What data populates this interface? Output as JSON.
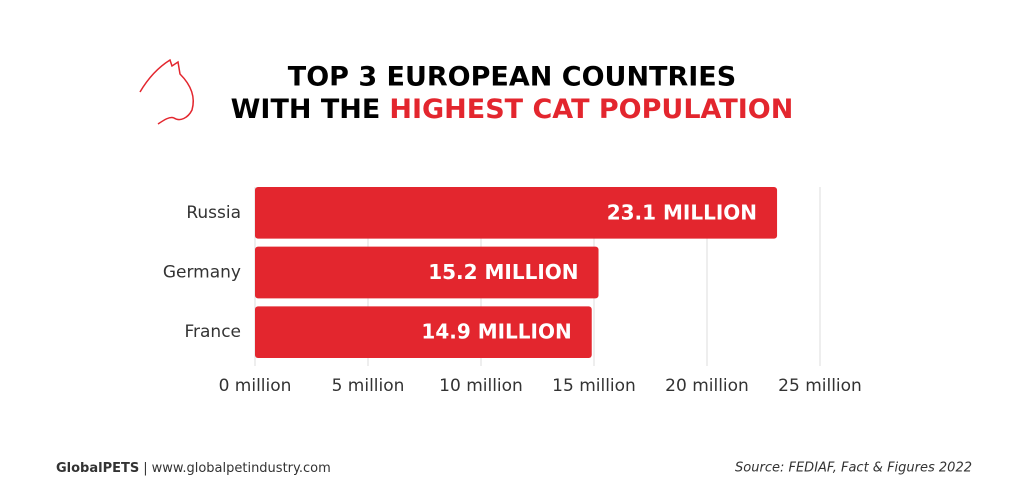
{
  "chart_data": {
    "type": "bar",
    "orientation": "horizontal",
    "title": {
      "line1": "TOP 3 EUROPEAN COUNTRIES",
      "line2": "WITH THE",
      "highlight": "HIGHEST CAT POPULATION"
    },
    "categories": [
      "Russia",
      "Germany",
      "France"
    ],
    "values": [
      23.1,
      15.2,
      14.9
    ],
    "value_labels": [
      "23.1 MILLION",
      "15.2 MILLION",
      "14.9 MILLION"
    ],
    "color": "#e3262e",
    "xlim": [
      0,
      25
    ],
    "xticks": [
      {
        "value": 0,
        "label": "0 million"
      },
      {
        "value": 5,
        "label": "5 million"
      },
      {
        "value": 10,
        "label": "10 million"
      },
      {
        "value": 15,
        "label": "15 million"
      },
      {
        "value": 20,
        "label": "20 million"
      },
      {
        "value": 25,
        "label": "25 million"
      }
    ],
    "grid": true,
    "footer": {
      "brand": "GlobalPETS",
      "separator": "|",
      "website": "www.globalpetindustry.com",
      "source": "Source: FEDIAF, Fact & Figures 2022"
    }
  }
}
